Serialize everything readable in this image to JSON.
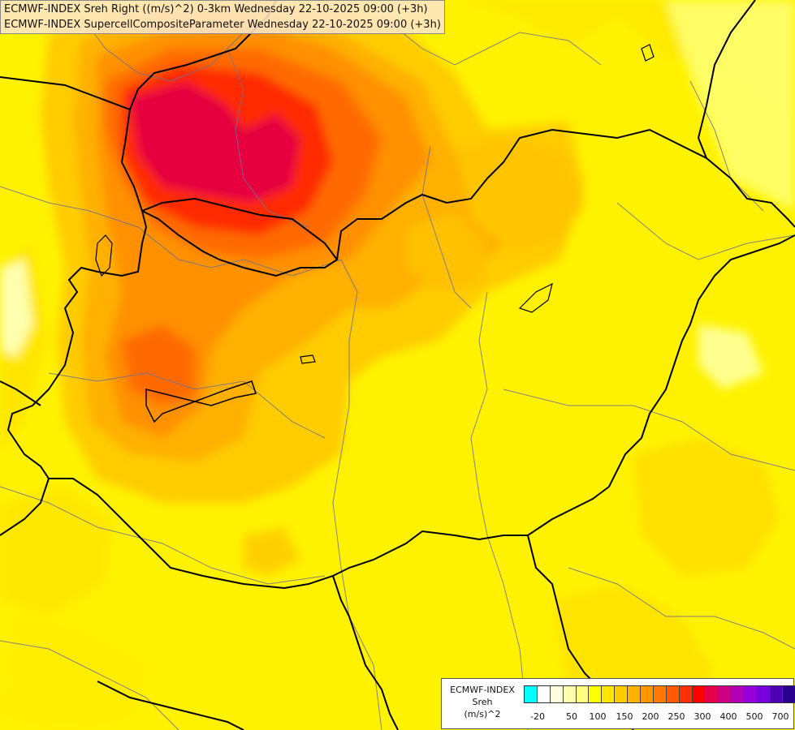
{
  "titles": {
    "line1": "ECMWF-INDEX Sreh Right ((m/s)^2) 0-3km Wednesday 22-10-2025 09:00 (+3h)",
    "line2": "ECMWF-INDEX SupercellCompositeParameter Wednesday 22-10-2025 09:00 (+3h)"
  },
  "legend": {
    "name": "ECMWF-INDEX",
    "variable": "Sreh",
    "unit": "(m/s)^2",
    "colors": [
      "#00ffff",
      "#ffffff",
      "#ffffe0",
      "#ffffb0",
      "#ffff80",
      "#ffff00",
      "#ffe600",
      "#ffcc00",
      "#ffb000",
      "#ff9600",
      "#ff7800",
      "#ff5a00",
      "#ff3000",
      "#ff0000",
      "#e6004c",
      "#cc0080",
      "#b400b4",
      "#9600dc",
      "#7800dc",
      "#5000b4",
      "#28008c",
      "#000080"
    ],
    "tick_labels": [
      "-20",
      "50",
      "100",
      "150",
      "200",
      "250",
      "300",
      "400",
      "500",
      "700"
    ]
  }
}
